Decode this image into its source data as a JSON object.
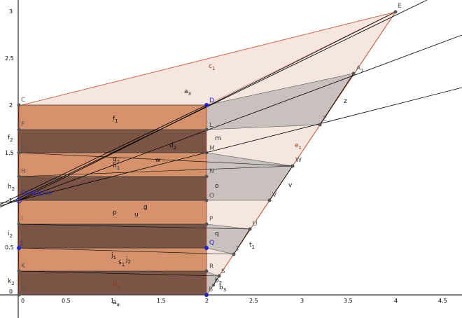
{
  "axes": {
    "x_ticks": [
      "0",
      "0.5",
      "1",
      "1.5",
      "2",
      "2.5",
      "3",
      "3.5",
      "4",
      "4.5"
    ],
    "y_ticks": [
      "0",
      "0.5",
      "1",
      "1.5",
      "2",
      "2.5",
      "3"
    ],
    "x_min": -0.2,
    "x_max": 4.75,
    "y_min": -0.25,
    "y_max": 3.2
  },
  "geometry": {
    "A": [
      0,
      0
    ],
    "B": [
      2,
      0
    ],
    "C": [
      0,
      2
    ],
    "D": [
      2,
      2
    ],
    "E": [
      4,
      3
    ],
    "origin_point": [
      0,
      1
    ],
    "right_points": {
      "A1": [
        3.55,
        2.33
      ],
      "Z": [
        3.2,
        1.78
      ],
      "W": [
        2.92,
        1.35
      ],
      "V": [
        2.67,
        1.0
      ],
      "U": [
        2.45,
        0.72
      ],
      "T": [
        2.3,
        0.48
      ],
      "S": [
        2.15,
        0.25
      ],
      "R1": [
        2.12,
        0.2
      ]
    },
    "rows": [
      0.25,
      0.5,
      0.75,
      1.0,
      1.25,
      1.5,
      1.75,
      2.0
    ]
  },
  "points": {
    "A": "A",
    "B": "B",
    "C": "C",
    "D": "D",
    "E": "E",
    "F": "F",
    "G": "G",
    "H": "H",
    "I": "I",
    "J": "J",
    "K": "K",
    "L": "L",
    "M": "M",
    "N": "N",
    "O": "O",
    "P": "P",
    "Q": "Q",
    "R": "R",
    "S": "S",
    "T": "T",
    "U": "U",
    "V": "V",
    "W": "W",
    "Z": "Z",
    "A1": "A",
    "A1_sub": "1",
    "origin_label": "Gucksaun"
  },
  "labels": {
    "c1": "c",
    "c1_sub": "1",
    "a3": "a",
    "a3_sub": "3",
    "f1": "f",
    "f1_sub": "1",
    "d2": "d",
    "d2_sub": "2",
    "g1": "g",
    "g1_sub": "1",
    "h1": "h",
    "h1_sub": "1",
    "w": "w",
    "g": "g",
    "u": "u",
    "p": "p",
    "m": "m",
    "o": "o",
    "q": "q",
    "z": "z",
    "v": "v",
    "e1": "e",
    "e1_sub": "1",
    "t1": "t",
    "t1_sub": "1",
    "j1": "j",
    "j1_sub": "1",
    "s1": "s",
    "s1_sub": "1",
    "j2": "j",
    "j2_sub": "2",
    "b1": "b",
    "b1_sub": "1",
    "b2": "b",
    "b2_sub": "2",
    "b3": "b",
    "b3_sub": "3",
    "f2": "f",
    "f2_sub": "2",
    "h2": "h",
    "h2_sub": "2",
    "i2": "i",
    "i2_sub": "2",
    "k2": "k",
    "k2_sub": "2",
    "a_bottom": "a",
    "a_bottom_sub": "a"
  },
  "colors": {
    "bg": "#ffffff",
    "light_fill": "#f5e6df",
    "orange_fill": "#d4916b",
    "dark_fill": "#7a5444",
    "gray_fill": "#d0c8c5",
    "red_line": "#c2502a",
    "black_line": "#000000",
    "blue_point": "#2222cc"
  }
}
